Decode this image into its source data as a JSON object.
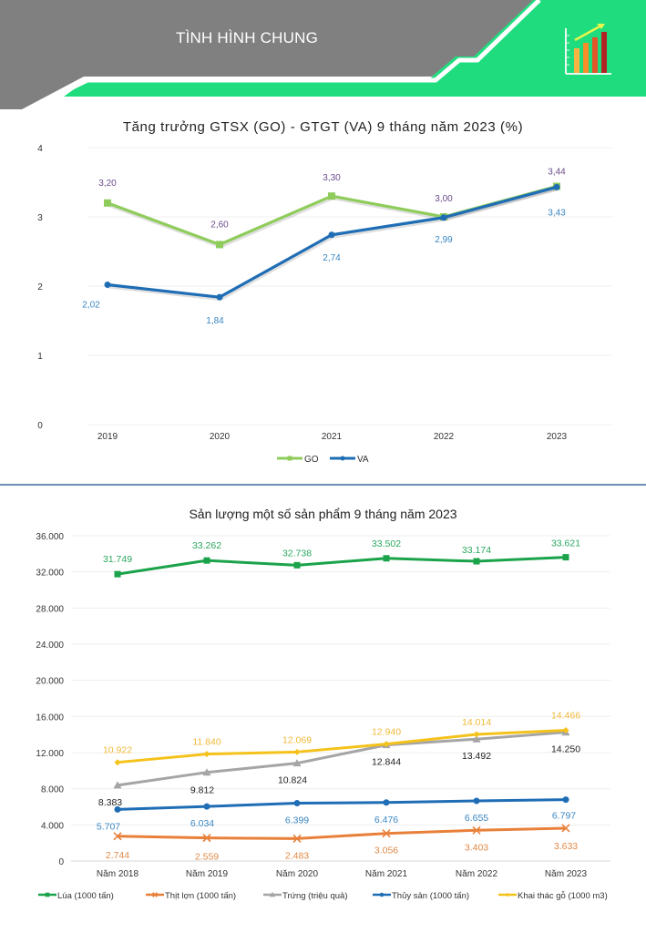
{
  "header": {
    "title": "TÌNH HÌNH CHUNG",
    "icon": "bar-chart-growth-icon",
    "colors": {
      "gray": "#808080",
      "green": "#1fdd7f"
    }
  },
  "chart_data": [
    {
      "type": "line",
      "title": "Tăng trưởng GTSX (GO) - GTGT (VA) 9 tháng năm 2023 (%)",
      "xlabel": "",
      "ylabel": "",
      "categories": [
        "2019",
        "2020",
        "2021",
        "2022",
        "2023"
      ],
      "ylim": [
        0,
        4
      ],
      "yticks": [
        0,
        1,
        2,
        3,
        4
      ],
      "grid": true,
      "legend_position": "bottom",
      "series": [
        {
          "name": "GO",
          "color": "#8fcc5c",
          "label_color": "#6a4c8c",
          "marker": "square",
          "values": [
            3.2,
            2.6,
            3.3,
            3.0,
            3.44
          ],
          "labels": [
            "3,20",
            "2,60",
            "3,30",
            "3,00",
            "3,44"
          ]
        },
        {
          "name": "VA",
          "color": "#1e6db5",
          "label_color": "#3a86c2",
          "marker": "circle",
          "values": [
            2.02,
            1.84,
            2.74,
            2.99,
            3.43
          ],
          "labels": [
            "2,02",
            "1,84",
            "2,74",
            "2,99",
            "3,43"
          ]
        }
      ]
    },
    {
      "type": "line",
      "title": "Sản lượng một số sản phẩm 9 tháng năm 2023",
      "xlabel": "",
      "ylabel": "",
      "categories": [
        "Năm 2018",
        "Năm 2019",
        "Năm 2020",
        "Năm 2021",
        "Năm 2022",
        "Năm 2023"
      ],
      "ylim": [
        0,
        36000
      ],
      "yticks": [
        0,
        4000,
        8000,
        12000,
        16000,
        20000,
        24000,
        28000,
        32000,
        36000
      ],
      "ytick_labels": [
        "0",
        "4.000",
        "8.000",
        "12.000",
        "16.000",
        "20.000",
        "24.000",
        "28.000",
        "32.000",
        "36.000"
      ],
      "grid": true,
      "legend_position": "bottom",
      "series": [
        {
          "name": "Lúa (1000 tấn)",
          "color": "#1aa34a",
          "label_color": "#2aa860",
          "marker": "square",
          "label_pos": "above",
          "values": [
            31749,
            33262,
            32738,
            33502,
            33174,
            33621
          ],
          "labels": [
            "31.749",
            "33.262",
            "32.738",
            "33.502",
            "33.174",
            "33.621"
          ]
        },
        {
          "name": "Thịt lợn (1000 tấn)",
          "color": "#e8803a",
          "label_color": "#e08a48",
          "marker": "x",
          "label_pos": "below",
          "values": [
            2744,
            2559,
            2483,
            3056,
            3403,
            3633
          ],
          "labels": [
            "2.744",
            "2.559",
            "2.483",
            "3.056",
            "3.403",
            "3.633"
          ]
        },
        {
          "name": "Trứng (triệu quả)",
          "color": "#a5a5a5",
          "label_color": "#222222",
          "marker": "triangle",
          "label_pos": "below",
          "values": [
            8383,
            9812,
            10824,
            12844,
            13492,
            14250
          ],
          "labels": [
            "8.383",
            "9.812",
            "10.824",
            "12.844",
            "13.492",
            "14.250"
          ]
        },
        {
          "name": "Thủy sản (1000 tấn)",
          "color": "#1e6db5",
          "label_color": "#3a86c2",
          "marker": "circle",
          "label_pos": "below",
          "values": [
            5707,
            6034,
            6399,
            6476,
            6655,
            6797
          ],
          "labels": [
            "5.707",
            "6.034",
            "6.399",
            "6.476",
            "6.655",
            "6.797"
          ]
        },
        {
          "name": "Khai thác gỗ (1000 m3)",
          "color": "#f5c21b",
          "label_color": "#f0b93a",
          "marker": "diamond",
          "label_pos": "above",
          "values": [
            10922,
            11840,
            12069,
            12940,
            14014,
            14466
          ],
          "labels": [
            "10.922",
            "11.840",
            "12.069",
            "12.940",
            "14.014",
            "14.466"
          ]
        }
      ]
    }
  ]
}
